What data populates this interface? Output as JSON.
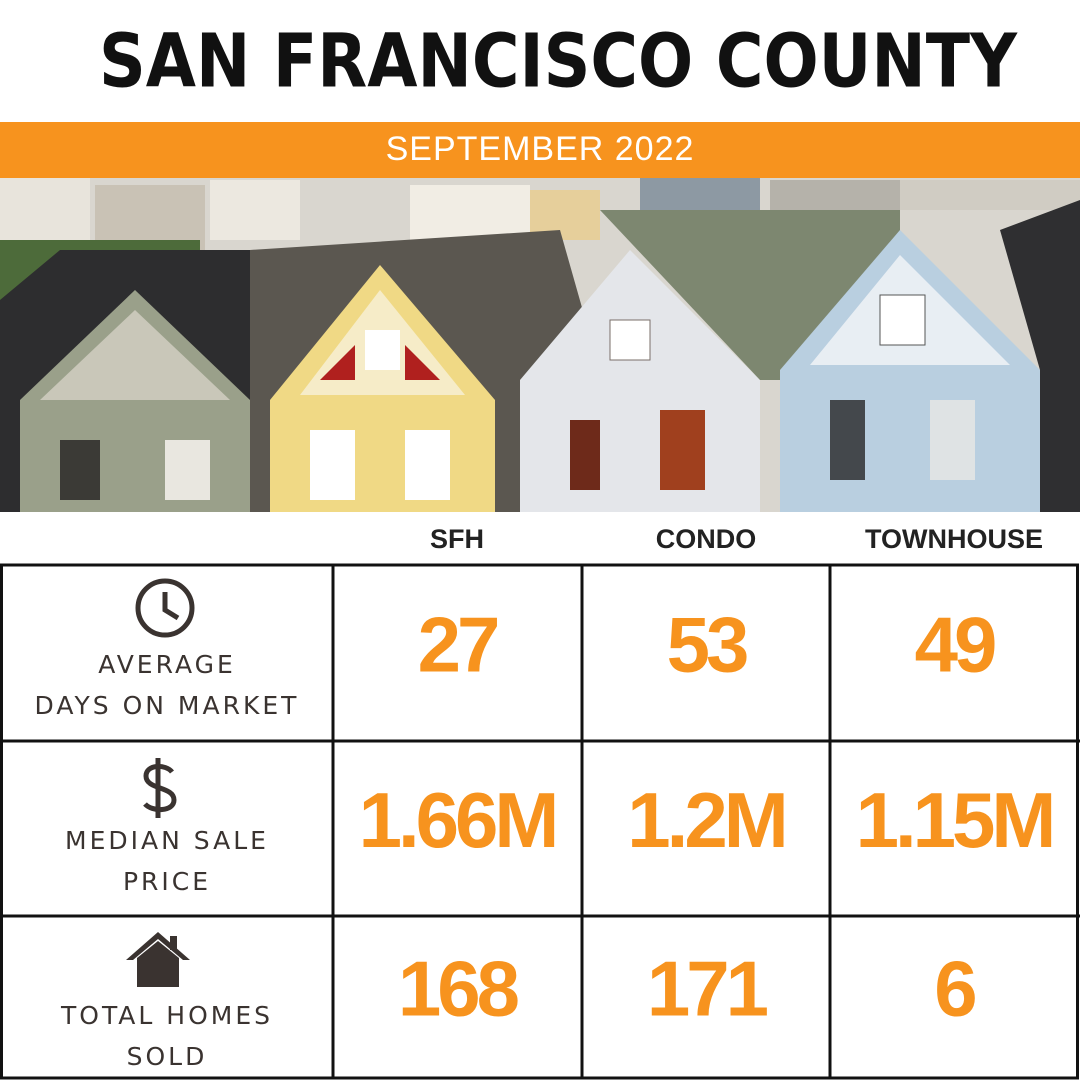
{
  "title": "SAN FRANCISCO COUNTY",
  "subtitle": "SEPTEMBER 2022",
  "table": {
    "columns": [
      "SFH",
      "CONDO",
      "TOWNHOUSE"
    ],
    "rows": [
      {
        "label": [
          "AVERAGE",
          "DAYS ON MARKET"
        ],
        "values": [
          "27",
          "53",
          "49"
        ]
      },
      {
        "label": [
          "MEDIAN SALE",
          "PRICE"
        ],
        "values": [
          "1.66M",
          "1.2M",
          "1.15M"
        ]
      },
      {
        "label": [
          "TOTAL HOMES",
          "SOLD"
        ],
        "values": [
          "168",
          "171",
          "6"
        ]
      }
    ]
  }
}
